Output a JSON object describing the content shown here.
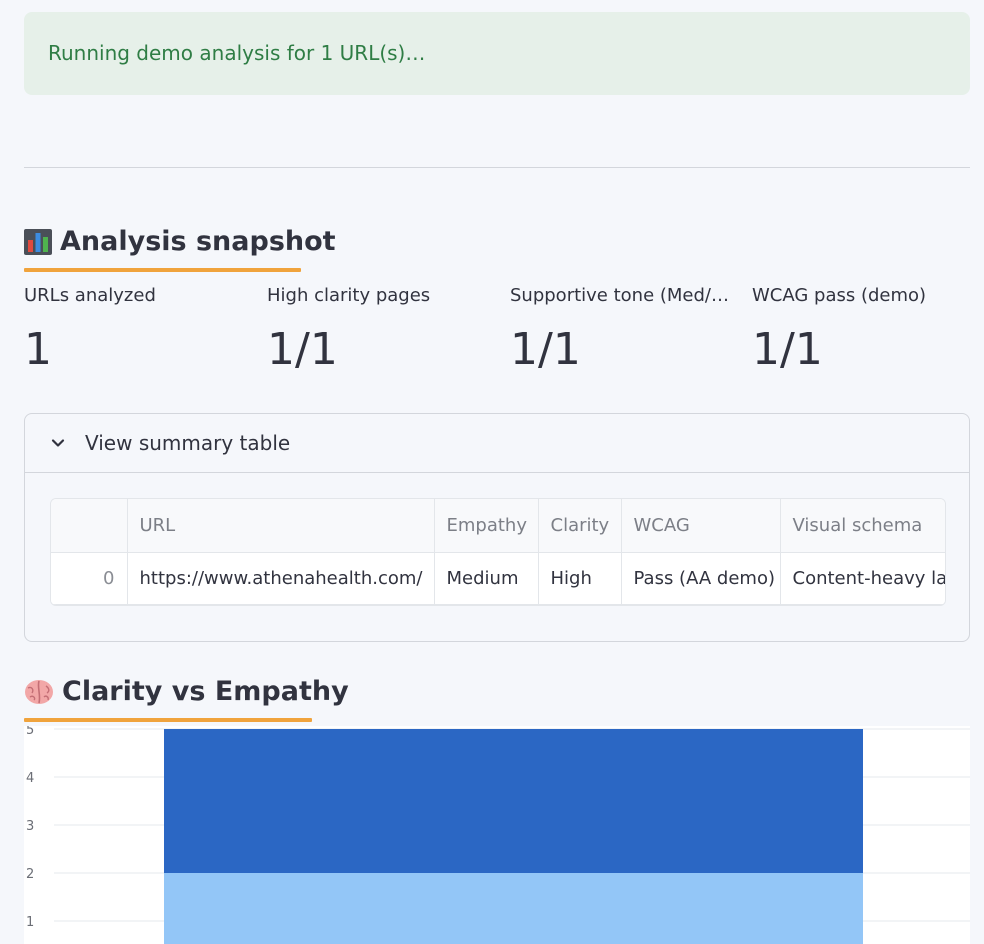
{
  "status": {
    "message": "Running demo analysis for 1 URL(s)…"
  },
  "snapshot": {
    "heading": "Analysis snapshot",
    "heading_icon": "bar-chart-emoji",
    "metrics": [
      {
        "label": "URLs analyzed",
        "value": "1"
      },
      {
        "label": "High clarity pages",
        "value": "1/1"
      },
      {
        "label": "Supportive tone (Med/…",
        "value": "1/1"
      },
      {
        "label": "WCAG pass (demo)",
        "value": "1/1"
      }
    ]
  },
  "summary": {
    "expander_label": "View summary table",
    "expander_icon": "chevron-down-icon",
    "columns": [
      "",
      "URL",
      "Empathy",
      "Clarity",
      "WCAG",
      "Visual schema"
    ],
    "rows": [
      {
        "index": "0",
        "url": "https://www.athenahealth.com/",
        "empathy": "Medium",
        "clarity": "High",
        "wcag": "Pass (AA demo)",
        "visual_schema": "Content-heavy lay"
      }
    ]
  },
  "clarity_empathy": {
    "heading": "Clarity vs Empathy",
    "heading_icon": "brain-emoji"
  },
  "colors": {
    "accent_underline": "#f0a33c",
    "alert_bg": "#e6f0e9",
    "alert_text": "#2f7d45",
    "bar_dark": "#2b67c4",
    "bar_light": "#93c6f7"
  },
  "chart_data": {
    "type": "bar",
    "stacked": true,
    "categories": [
      ""
    ],
    "series": [
      {
        "values": [
          2
        ],
        "color": "#93c6f7"
      },
      {
        "values": [
          3
        ],
        "color": "#2b67c4"
      }
    ],
    "y_ticks": [
      1,
      2,
      3,
      4,
      5
    ],
    "ylim": [
      0,
      5
    ],
    "grid": true
  }
}
